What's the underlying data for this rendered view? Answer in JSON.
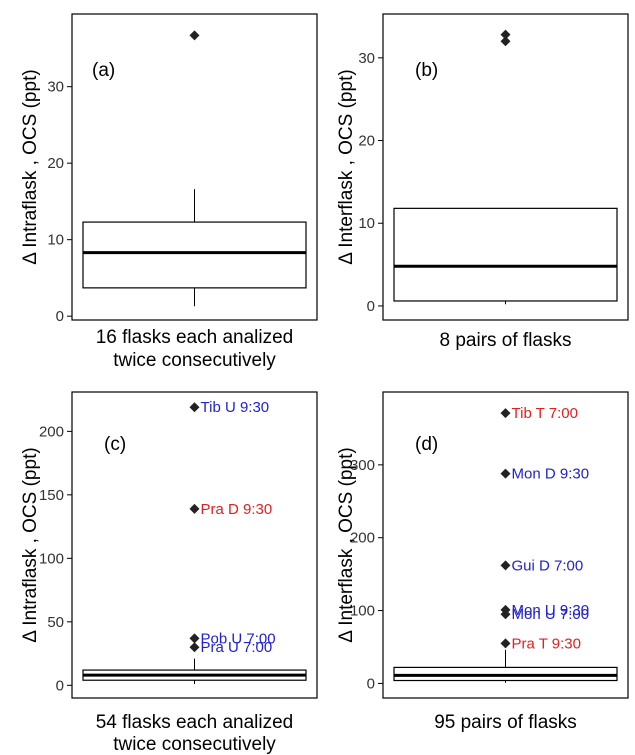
{
  "chart_data": [
    {
      "type": "box",
      "panel_label": "(a)",
      "xlabel_lines": [
        "16 flasks each analized",
        "twice consecutively"
      ],
      "ylabel": "Δ Intraflask , OCS (ppt)",
      "ylim": [
        -0.5,
        39.5
      ],
      "yticks": [
        0,
        10,
        20,
        30
      ],
      "box": {
        "q1": 3.7,
        "median": 8.3,
        "q3": 12.3,
        "whisker_low": 1.3,
        "whisker_high": 16.6
      },
      "outliers": [
        {
          "value": 36.7,
          "label": "",
          "color": "#000000"
        }
      ]
    },
    {
      "type": "box",
      "panel_label": "(b)",
      "xlabel_lines": [
        "8 pairs of flasks"
      ],
      "ylabel": "Δ Interflask , OCS (ppt)",
      "ylim": [
        -1.7,
        35.3
      ],
      "yticks": [
        0,
        10,
        20,
        30
      ],
      "box": {
        "q1": 0.6,
        "median": 4.8,
        "q3": 11.8,
        "whisker_low": 0.2,
        "whisker_high": 11.8
      },
      "outliers": [
        {
          "value": 32.8,
          "label": "",
          "color": "#000000"
        },
        {
          "value": 32.0,
          "label": "",
          "color": "#000000"
        }
      ]
    },
    {
      "type": "box",
      "panel_label": "(c)",
      "xlabel_lines": [
        "54 flasks each analized",
        "twice consecutively"
      ],
      "ylabel": "Δ Intraflask , OCS (ppt)",
      "ylim": [
        -10,
        231
      ],
      "yticks": [
        0,
        50,
        100,
        150,
        200
      ],
      "box": {
        "q1": 4,
        "median": 8,
        "q3": 12,
        "whisker_low": 1,
        "whisker_high": 21
      },
      "outliers": [
        {
          "value": 219,
          "label": "Tib U 9:30",
          "color": "#2222cc"
        },
        {
          "value": 139,
          "label": "Pra D 9:30",
          "color": "#dd2222"
        },
        {
          "value": 37,
          "label": "Pob U 7:00",
          "color": "#2222cc"
        },
        {
          "value": 30,
          "label": "Pra U 7:00",
          "color": "#2222cc"
        }
      ]
    },
    {
      "type": "box",
      "panel_label": "(d)",
      "xlabel_lines": [
        "95 pairs of flasks"
      ],
      "ylabel": "Δ Interflask , OCS (ppt)",
      "ylim": [
        -20,
        400
      ],
      "yticks": [
        0,
        100,
        200,
        300
      ],
      "box": {
        "q1": 4,
        "median": 11,
        "q3": 22,
        "whisker_low": 1,
        "whisker_high": 46
      },
      "outliers": [
        {
          "value": 371,
          "label": "Tib T 7:00",
          "color": "#dd2222"
        },
        {
          "value": 288,
          "label": "Mon D 9:30",
          "color": "#2222cc"
        },
        {
          "value": 162,
          "label": "Gui D 7:00",
          "color": "#2222cc"
        },
        {
          "value": 101,
          "label": "Mon U 9:30",
          "color": "#2222cc"
        },
        {
          "value": 95,
          "label": "Mon U 7:00",
          "color": "#2222cc"
        },
        {
          "value": 55,
          "label": "Pra T 9:30",
          "color": "#dd2222"
        }
      ]
    }
  ]
}
